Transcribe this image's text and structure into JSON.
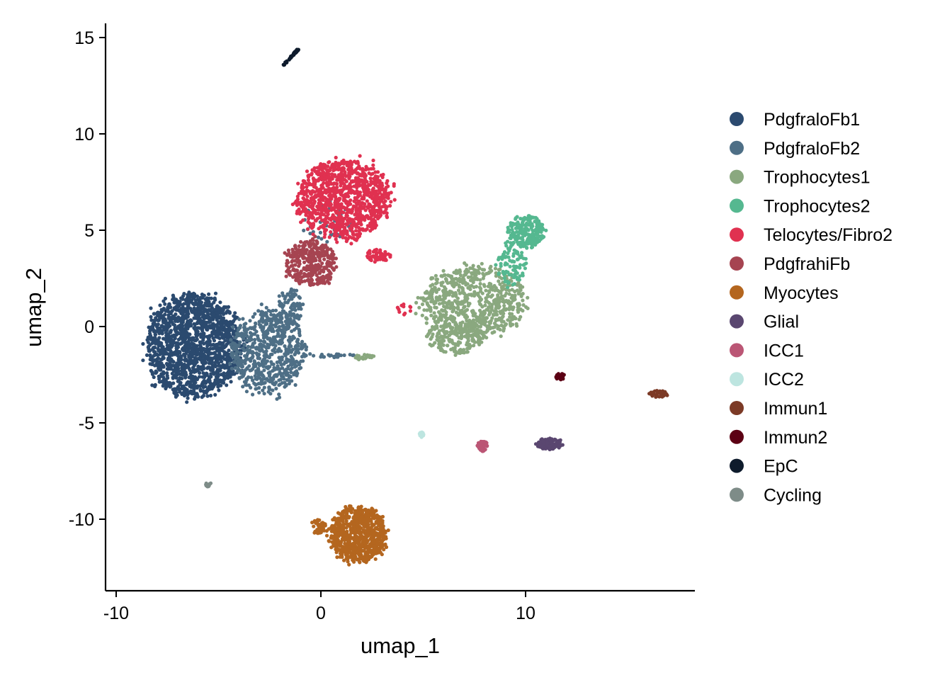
{
  "chart_data": {
    "type": "scatter",
    "title": "",
    "xlabel": "umap_1",
    "ylabel": "umap_2",
    "xlim": [
      -10.5,
      18
    ],
    "ylim": [
      -13.8,
      15.8
    ],
    "x_ticks": [
      -10,
      0,
      10
    ],
    "y_ticks": [
      15,
      10,
      5,
      0,
      -5,
      -10
    ],
    "x_tick_labels": [
      "-10",
      "0",
      "10"
    ],
    "y_tick_labels": [
      "15",
      "10",
      "5",
      "0",
      "-5",
      "-10"
    ],
    "grid": false,
    "legend_position": "right",
    "series": [
      {
        "name": "PdgfraloFb1",
        "color": "#2B4A6F",
        "clusters": [
          {
            "cx": -6.2,
            "cy": -1.0,
            "rx": 2.6,
            "ry": 2.9,
            "n": 1500
          }
        ]
      },
      {
        "name": "PdgfraloFb2",
        "color": "#4E6F86",
        "clusters": [
          {
            "cx": -2.6,
            "cy": -1.3,
            "rx": 2.0,
            "ry": 2.4,
            "n": 650
          },
          {
            "cx": -1.5,
            "cy": 1.0,
            "rx": 0.7,
            "ry": 1.0,
            "n": 90
          },
          {
            "cx": 0.3,
            "cy": 5.5,
            "rx": 1.4,
            "ry": 1.2,
            "n": 40
          },
          {
            "cx": 0.6,
            "cy": -1.5,
            "rx": 1.2,
            "ry": 0.1,
            "n": 25
          }
        ]
      },
      {
        "name": "Trophocytes1",
        "color": "#8AA87F",
        "clusters": [
          {
            "cx": 7.5,
            "cy": 1.3,
            "rx": 2.8,
            "ry": 2.0,
            "n": 700
          },
          {
            "cx": 6.6,
            "cy": -0.6,
            "rx": 1.6,
            "ry": 0.9,
            "n": 180
          },
          {
            "cx": 2.2,
            "cy": -1.6,
            "rx": 0.6,
            "ry": 0.15,
            "n": 25
          }
        ]
      },
      {
        "name": "Trophocytes2",
        "color": "#55B890",
        "clusters": [
          {
            "cx": 10.0,
            "cy": 4.9,
            "rx": 1.0,
            "ry": 0.9,
            "n": 220
          },
          {
            "cx": 9.3,
            "cy": 3.2,
            "rx": 0.8,
            "ry": 1.1,
            "n": 90
          }
        ]
      },
      {
        "name": "Telocytes/Fibro2",
        "color": "#E03150",
        "clusters": [
          {
            "cx": 1.1,
            "cy": 6.6,
            "rx": 2.5,
            "ry": 2.2,
            "n": 1050
          },
          {
            "cx": 2.8,
            "cy": 3.7,
            "rx": 0.7,
            "ry": 0.35,
            "n": 60
          },
          {
            "cx": 4.1,
            "cy": 0.9,
            "rx": 0.5,
            "ry": 0.3,
            "n": 12
          }
        ]
      },
      {
        "name": "PdgfrahiFb",
        "color": "#A64451",
        "clusters": [
          {
            "cx": -0.5,
            "cy": 3.3,
            "rx": 1.4,
            "ry": 1.3,
            "n": 350
          }
        ]
      },
      {
        "name": "Myocytes",
        "color": "#B4661F",
        "clusters": [
          {
            "cx": 1.8,
            "cy": -10.8,
            "rx": 1.5,
            "ry": 1.6,
            "n": 750
          },
          {
            "cx": -0.1,
            "cy": -10.4,
            "rx": 0.45,
            "ry": 0.4,
            "n": 45
          }
        ]
      },
      {
        "name": "Glial",
        "color": "#5A4770",
        "clusters": [
          {
            "cx": 11.2,
            "cy": -6.1,
            "rx": 0.7,
            "ry": 0.3,
            "n": 110
          }
        ]
      },
      {
        "name": "ICC1",
        "color": "#BB5675",
        "clusters": [
          {
            "cx": 7.9,
            "cy": -6.2,
            "rx": 0.3,
            "ry": 0.3,
            "n": 55
          }
        ]
      },
      {
        "name": "ICC2",
        "color": "#BDE5E0",
        "clusters": [
          {
            "cx": 4.9,
            "cy": -5.6,
            "rx": 0.15,
            "ry": 0.15,
            "n": 18
          }
        ]
      },
      {
        "name": "Immun1",
        "color": "#7C3A26",
        "clusters": [
          {
            "cx": 16.5,
            "cy": -3.5,
            "rx": 0.5,
            "ry": 0.2,
            "n": 45
          }
        ]
      },
      {
        "name": "Immun2",
        "color": "#5C0014",
        "clusters": [
          {
            "cx": 11.7,
            "cy": -2.6,
            "rx": 0.25,
            "ry": 0.2,
            "n": 28
          }
        ]
      },
      {
        "name": "EpC",
        "color": "#0E1B2C",
        "clusters": [
          {
            "line": [
              -1.8,
              13.6,
              -1.1,
              14.4
            ],
            "n": 55
          }
        ]
      },
      {
        "name": "Cycling",
        "color": "#7E8C88",
        "clusters": [
          {
            "cx": -5.5,
            "cy": -8.2,
            "rx": 0.15,
            "ry": 0.12,
            "n": 14
          }
        ]
      }
    ]
  }
}
